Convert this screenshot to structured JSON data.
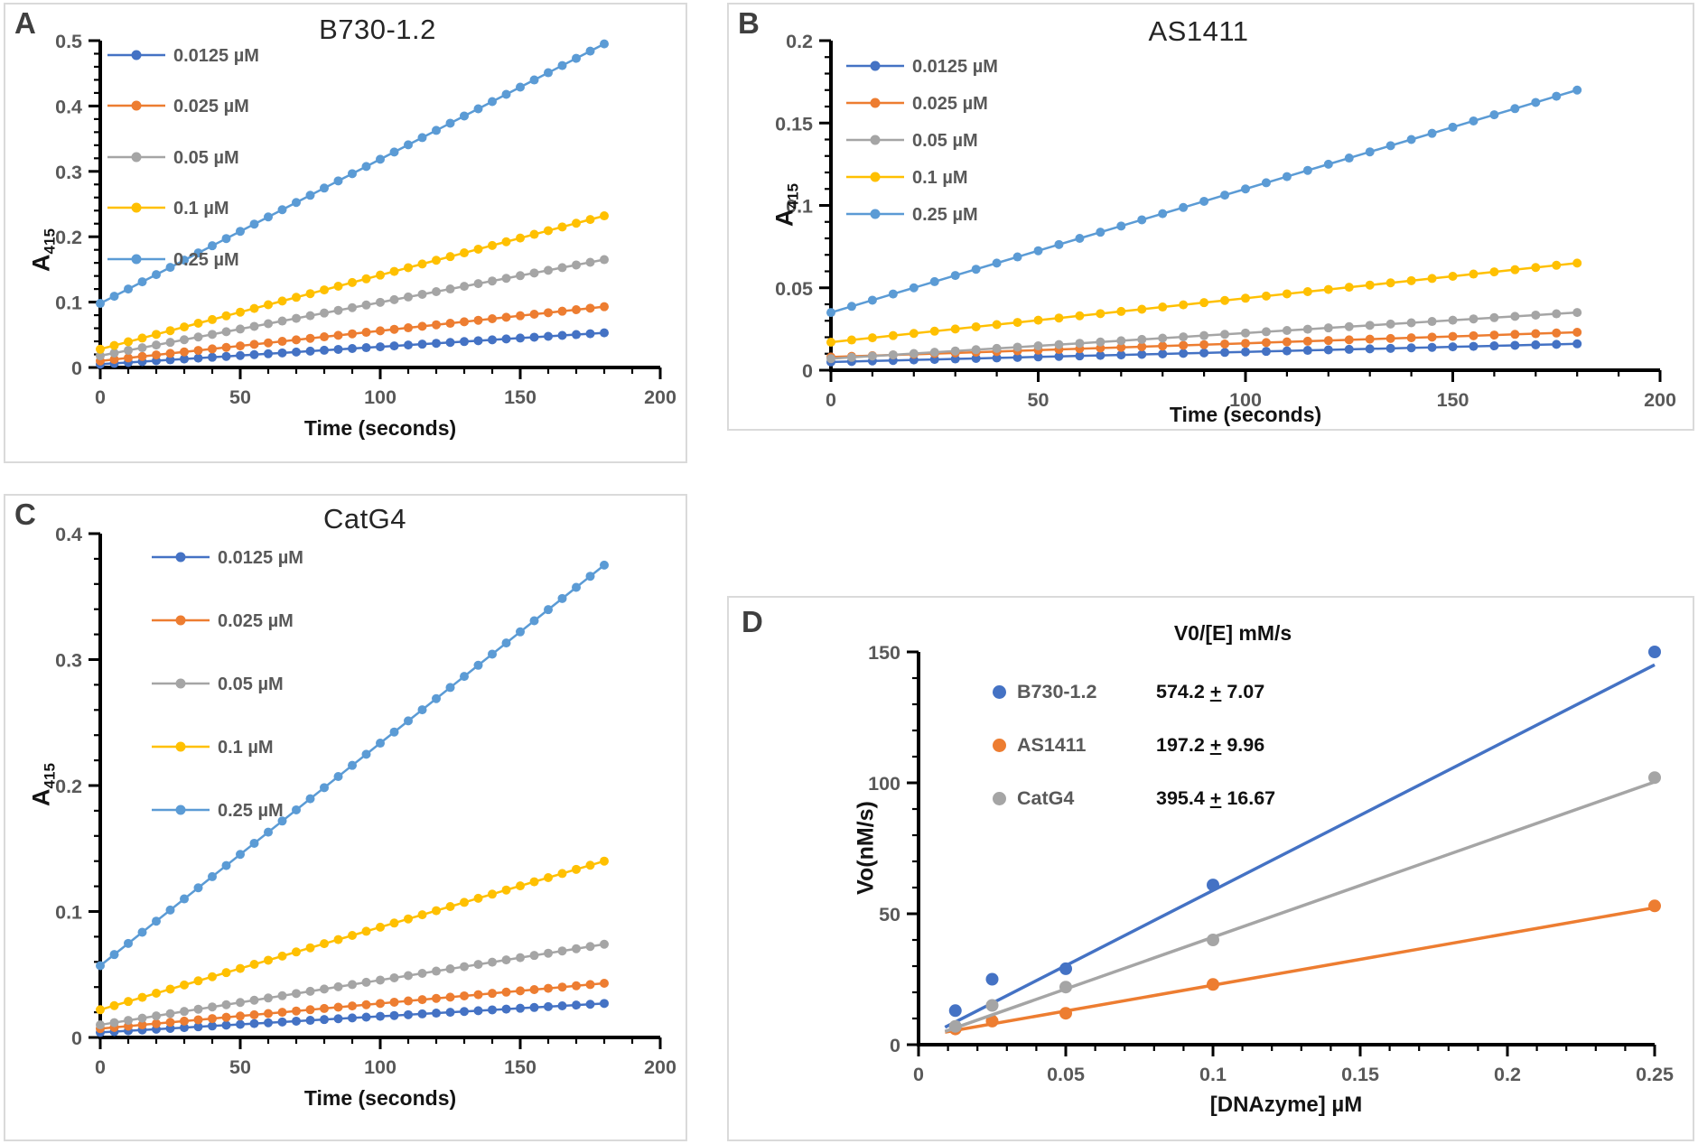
{
  "panels": [
    {
      "letter": "A",
      "title": "B730-1.2",
      "xlabel": "Time (seconds)",
      "ylabel_base": "A",
      "ylabel_sub": "415",
      "chart_data": {
        "type": "line",
        "xlabel": "Time (seconds)",
        "ylabel": "A415",
        "xlim": [
          0,
          200
        ],
        "ylim": [
          0,
          0.5
        ],
        "x_major": 50,
        "x_minor": 10,
        "y_major": 0.1,
        "y_minor": 0.02,
        "x_ticks": [
          "0",
          "50",
          "100",
          "150",
          "200"
        ],
        "y_ticks": [
          "0",
          "0.1",
          "0.2",
          "0.3",
          "0.4",
          "0.5"
        ],
        "grid": false,
        "legend_position": "upper-left",
        "t_start": 0,
        "t_end": 180,
        "n_points": 37,
        "series": [
          {
            "label": "0.0125 µM",
            "color": "#4472C4",
            "y_start": 0.005,
            "y_end": 0.053
          },
          {
            "label": "0.025 µM",
            "color": "#ED7D31",
            "y_start": 0.01,
            "y_end": 0.093
          },
          {
            "label": "0.05 µM",
            "color": "#A5A5A5",
            "y_start": 0.018,
            "y_end": 0.165
          },
          {
            "label": "0.1 µM",
            "color": "#FFC000",
            "y_start": 0.028,
            "y_end": 0.232
          },
          {
            "label": "0.25  µM",
            "color": "#5B9BD5",
            "y_start": 0.098,
            "y_end": 0.495
          }
        ]
      }
    },
    {
      "letter": "B",
      "title": "AS1411",
      "xlabel": "Time (seconds)",
      "ylabel_base": "A",
      "ylabel_sub": "415",
      "chart_data": {
        "type": "line",
        "xlabel": "Time (seconds)",
        "ylabel": "A415",
        "xlim": [
          0,
          200
        ],
        "ylim": [
          0,
          0.2
        ],
        "x_major": 50,
        "x_minor": 10,
        "y_major": 0.05,
        "y_minor": 0.01,
        "x_ticks": [
          "0",
          "50",
          "100",
          "150",
          "200"
        ],
        "y_ticks": [
          "0",
          "0.05",
          "0.1",
          "0.15",
          "0.2"
        ],
        "grid": false,
        "legend_position": "upper-left",
        "t_start": 0,
        "t_end": 180,
        "n_points": 37,
        "series": [
          {
            "label": "0.0125 µM",
            "color": "#4472C4",
            "y_start": 0.005,
            "y_end": 0.016
          },
          {
            "label": "0.025 µM",
            "color": "#ED7D31",
            "y_start": 0.008,
            "y_end": 0.023
          },
          {
            "label": "0.05 µM",
            "color": "#A5A5A5",
            "y_start": 0.007,
            "y_end": 0.035
          },
          {
            "label": "0.1 µM",
            "color": "#FFC000",
            "y_start": 0.017,
            "y_end": 0.065
          },
          {
            "label": "0.25  µM",
            "color": "#5B9BD5",
            "y_start": 0.035,
            "y_end": 0.17
          }
        ]
      }
    },
    {
      "letter": "C",
      "title": "CatG4",
      "xlabel": "Time (seconds)",
      "ylabel_base": "A",
      "ylabel_sub": "415",
      "chart_data": {
        "type": "line",
        "xlabel": "Time (seconds)",
        "ylabel": "A415",
        "xlim": [
          0,
          200
        ],
        "ylim": [
          0,
          0.4
        ],
        "x_major": 50,
        "x_minor": 10,
        "y_major": 0.1,
        "y_minor": 0.02,
        "x_ticks": [
          "0",
          "50",
          "100",
          "150",
          "200"
        ],
        "y_ticks": [
          "0",
          "0.1",
          "0.2",
          "0.3",
          "0.4"
        ],
        "grid": false,
        "legend_position": "upper-left",
        "t_start": 0,
        "t_end": 180,
        "n_points": 37,
        "series": [
          {
            "label": "0.0125 µM",
            "color": "#4472C4",
            "y_start": 0.004,
            "y_end": 0.027
          },
          {
            "label": "0.025 µM",
            "color": "#ED7D31",
            "y_start": 0.007,
            "y_end": 0.043
          },
          {
            "label": "0.05 µM",
            "color": "#A5A5A5",
            "y_start": 0.01,
            "y_end": 0.074
          },
          {
            "label": "0.1 µM",
            "color": "#FFC000",
            "y_start": 0.022,
            "y_end": 0.14
          },
          {
            "label": "0.25  µM",
            "color": "#5B9BD5",
            "y_start": 0.057,
            "y_end": 0.375
          }
        ]
      }
    },
    {
      "letter": "D",
      "title": "",
      "xlabel": "[DNAzyme] µM",
      "ylabel": "Vo(nM/s)",
      "chart_data": {
        "type": "scatter",
        "xlabel": "[DNAzyme] µM",
        "ylabel": "Vo(nM/s)",
        "xlim": [
          0,
          0.25
        ],
        "ylim": [
          0,
          150
        ],
        "x_major": 0.05,
        "x_minor": 0.01,
        "y_major": 50,
        "y_minor": 10,
        "x_ticks": [
          "0",
          "0.05",
          "0.1",
          "0.15",
          "0.2",
          "0.25"
        ],
        "y_ticks": [
          "0",
          "50",
          "100",
          "150"
        ],
        "grid": false,
        "legend_header": "V0/[E] mM/s",
        "legend_position": "upper-left",
        "series": [
          {
            "label": "B730-1.2",
            "value": "574.2 ± 7.07",
            "color": "#4472C4",
            "x": [
              0.0125,
              0.025,
              0.05,
              0.1,
              0.25
            ],
            "y": [
              13,
              25,
              29,
              61,
              150
            ],
            "fit_slope": 574.2,
            "fit_intercept": 1.5
          },
          {
            "label": "AS1411",
            "value": "197.2 ± 9.96",
            "color": "#ED7D31",
            "x": [
              0.0125,
              0.025,
              0.05,
              0.1,
              0.25
            ],
            "y": [
              6,
              9,
              12,
              23,
              53
            ],
            "fit_slope": 197.2,
            "fit_intercept": 3.0
          },
          {
            "label": "CatG4",
            "value": "395.4 ± 16.67",
            "color": "#A5A5A5",
            "x": [
              0.0125,
              0.025,
              0.05,
              0.1,
              0.25
            ],
            "y": [
              7,
              15,
              22,
              40,
              102
            ],
            "fit_slope": 395.4,
            "fit_intercept": 1.5
          }
        ]
      }
    }
  ]
}
